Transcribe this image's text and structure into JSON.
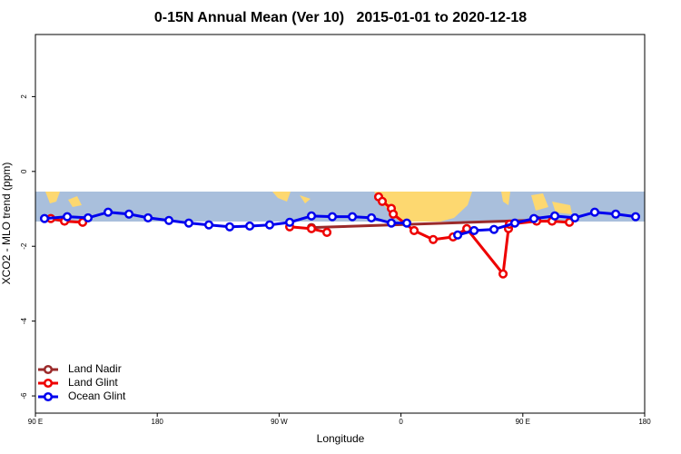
{
  "chart_data": {
    "type": "line",
    "title": "0-15N Annual Mean (Ver 10)   2015-01-01 to 2020-12-18",
    "xlabel": "Longitude",
    "ylabel": "XCO2 - MLO trend (ppm)",
    "xlim": [
      90,
      540
    ],
    "ylim": [
      -6.46,
      3.66
    ],
    "xticks": [
      {
        "value": 90,
        "label": "90 E"
      },
      180,
      {
        "value": 270,
        "label": "90 W"
      },
      {
        "value": 360,
        "label": "0"
      },
      {
        "value": 450,
        "label": "90 E"
      },
      {
        "value": 540,
        "label": "180"
      }
    ],
    "yticks": [
      -6,
      -4,
      -2,
      0,
      2
    ],
    "legend": "bottom-left",
    "series": [
      {
        "name": "Land Nadir",
        "color": "#9b2a2a",
        "x": [
          293.9,
          460.2
        ],
        "values": [
          -1.5,
          -1.3
        ]
      },
      {
        "name": "Land Glint",
        "color": "#ee0000",
        "x": [
          101.4,
          111.5,
          124.9,
          null,
          277.8,
          293.9,
          305.3,
          null,
          343.5,
          346.2,
          352.9,
          354.3,
          369.7,
          383.8,
          398.5,
          408.6,
          435.4,
          439.4,
          440.1,
          460.2,
          471.6,
          484.4
        ],
        "values": [
          -1.26,
          -1.33,
          -1.36,
          null,
          -1.48,
          -1.53,
          -1.63,
          null,
          -0.68,
          -0.8,
          -0.99,
          -1.14,
          -1.58,
          -1.82,
          -1.75,
          -1.53,
          -2.74,
          -1.53,
          -1.41,
          -1.33,
          -1.33,
          -1.36
        ]
      },
      {
        "name": "Ocean Glint",
        "color": "#0000ee",
        "x": [
          96.7,
          113.5,
          128.9,
          143.7,
          159.1,
          173.2,
          188.6,
          203.3,
          218.1,
          233.5,
          248.3,
          263.0,
          277.8,
          293.9,
          309.3,
          324.1,
          338.2,
          352.9,
          364.3,
          null,
          401.9,
          414.0,
          428.7,
          444.1,
          458.2,
          473.6,
          488.4,
          503.1,
          518.6,
          533.3
        ],
        "values": [
          -1.26,
          -1.21,
          -1.24,
          -1.09,
          -1.14,
          -1.24,
          -1.31,
          -1.38,
          -1.43,
          -1.48,
          -1.46,
          -1.43,
          -1.36,
          -1.19,
          -1.21,
          -1.21,
          -1.24,
          -1.38,
          -1.38,
          null,
          -1.7,
          -1.58,
          -1.55,
          -1.38,
          -1.26,
          -1.19,
          -1.24,
          -1.09,
          -1.14,
          -1.21
        ]
      }
    ]
  }
}
